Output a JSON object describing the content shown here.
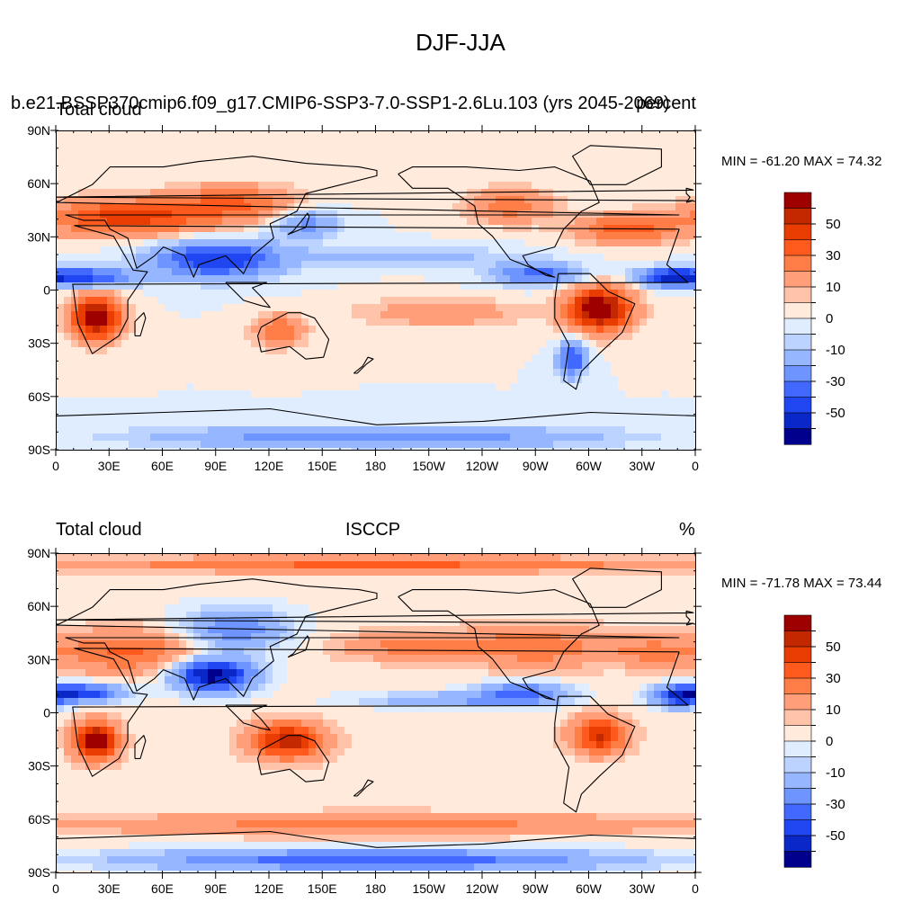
{
  "title": "DJF-JJA",
  "panels": [
    {
      "left_text": "Total cloud",
      "overlay_text": "b.e21.BSSP370cmip6.f09_g17.CMIP6-SSP3-7.0-SSP1-2.6Lu.103 (yrs 2045-2069)",
      "right_text": "percent",
      "center_text": "",
      "minmax": "MIN = -61.20 MAX =  74.32",
      "field": {
        "base": 0,
        "features": [
          {
            "lon": 40,
            "lat": 42,
            "rlon": 45,
            "rlat": 10,
            "amp": 45
          },
          {
            "lon": 100,
            "lat": 50,
            "rlon": 35,
            "rlat": 10,
            "amp": 30
          },
          {
            "lon": 22,
            "lat": -15,
            "rlon": 14,
            "rlat": 12,
            "amp": 70
          },
          {
            "lon": 125,
            "lat": -22,
            "rlon": 14,
            "rlat": 9,
            "amp": 30
          },
          {
            "lon": 305,
            "lat": -10,
            "rlon": 18,
            "rlat": 12,
            "amp": 74
          },
          {
            "lon": 320,
            "lat": 35,
            "rlon": 28,
            "rlat": 8,
            "amp": 35
          },
          {
            "lon": 255,
            "lat": 48,
            "rlon": 25,
            "rlat": 10,
            "amp": 25
          },
          {
            "lon": 215,
            "lat": -12,
            "rlon": 45,
            "rlat": 8,
            "amp": 18
          },
          {
            "lon": 90,
            "lat": 18,
            "rlon": 35,
            "rlat": 10,
            "amp": -50
          },
          {
            "lon": 15,
            "lat": 8,
            "rlon": 28,
            "rlat": 5,
            "amp": -45
          },
          {
            "lon": 345,
            "lat": 8,
            "rlon": 18,
            "rlat": 5,
            "amp": -45
          },
          {
            "lon": 270,
            "lat": 10,
            "rlon": 25,
            "rlat": 6,
            "amp": -35
          },
          {
            "lon": 290,
            "lat": -38,
            "rlon": 8,
            "rlat": 10,
            "amp": -40
          },
          {
            "lon": 180,
            "lat": -82,
            "rlon": 120,
            "rlat": 6,
            "amp": -30
          },
          {
            "lon": 140,
            "lat": 38,
            "rlon": 18,
            "rlat": 8,
            "amp": -25
          },
          {
            "lon": 195,
            "lat": 20,
            "rlon": 60,
            "rlat": 5,
            "amp": -15
          }
        ]
      }
    },
    {
      "left_text": "Total cloud",
      "overlay_text": "",
      "right_text": "%",
      "center_text": "ISCCP",
      "minmax": "MIN = -71.78 MAX =  73.44",
      "field": {
        "base": 2,
        "features": [
          {
            "lon": 40,
            "lat": 35,
            "rlon": 40,
            "rlat": 12,
            "amp": 30
          },
          {
            "lon": 22,
            "lat": -15,
            "rlon": 12,
            "rlat": 10,
            "amp": 70
          },
          {
            "lon": 130,
            "lat": -15,
            "rlon": 20,
            "rlat": 10,
            "amp": 55
          },
          {
            "lon": 305,
            "lat": -12,
            "rlon": 15,
            "rlat": 10,
            "amp": 50
          },
          {
            "lon": 270,
            "lat": 38,
            "rlon": 40,
            "rlat": 12,
            "amp": 25
          },
          {
            "lon": 335,
            "lat": 35,
            "rlon": 25,
            "rlat": 8,
            "amp": 20
          },
          {
            "lon": 200,
            "lat": 38,
            "rlon": 40,
            "rlat": 8,
            "amp": 22
          },
          {
            "lon": 180,
            "lat": -62,
            "rlon": 180,
            "rlat": 6,
            "amp": 22
          },
          {
            "lon": 180,
            "lat": 84,
            "rlon": 180,
            "rlat": 4,
            "amp": 30
          },
          {
            "lon": 88,
            "lat": 22,
            "rlon": 22,
            "rlat": 9,
            "amp": -70
          },
          {
            "lon": 100,
            "lat": 48,
            "rlon": 30,
            "rlat": 12,
            "amp": -30
          },
          {
            "lon": 15,
            "lat": 12,
            "rlon": 22,
            "rlat": 5,
            "amp": -50
          },
          {
            "lon": 350,
            "lat": 10,
            "rlon": 15,
            "rlat": 6,
            "amp": -50
          },
          {
            "lon": 262,
            "lat": 12,
            "rlon": 25,
            "rlat": 6,
            "amp": -35
          },
          {
            "lon": 220,
            "lat": 8,
            "rlon": 50,
            "rlat": 4,
            "amp": -20
          },
          {
            "lon": 180,
            "lat": -82,
            "rlon": 140,
            "rlat": 6,
            "amp": -40
          }
        ]
      }
    }
  ],
  "lat_labels": [
    "90N",
    "60N",
    "30N",
    "0",
    "30S",
    "60S",
    "90S"
  ],
  "lon_labels": [
    "0",
    "30E",
    "60E",
    "90E",
    "120E",
    "150E",
    "180",
    "150W",
    "120W",
    "90W",
    "60W",
    "30W",
    "0"
  ],
  "colorbar": {
    "colors": [
      "#9e0000",
      "#c32800",
      "#e83c00",
      "#ff5a1e",
      "#ff7d46",
      "#ff9e78",
      "#ffc3aa",
      "#ffeadc",
      "#e0edff",
      "#bcd3ff",
      "#96b6ff",
      "#6e95ff",
      "#4169ff",
      "#1f46f0",
      "#0a28c8",
      "#00008c"
    ],
    "levels": [
      60,
      50,
      40,
      30,
      20,
      10,
      5,
      0,
      -5,
      -10,
      -20,
      -30,
      -40,
      -50,
      -60
    ],
    "labels": [
      "50",
      "30",
      "10",
      "0",
      "-10",
      "-30",
      "-50"
    ]
  }
}
